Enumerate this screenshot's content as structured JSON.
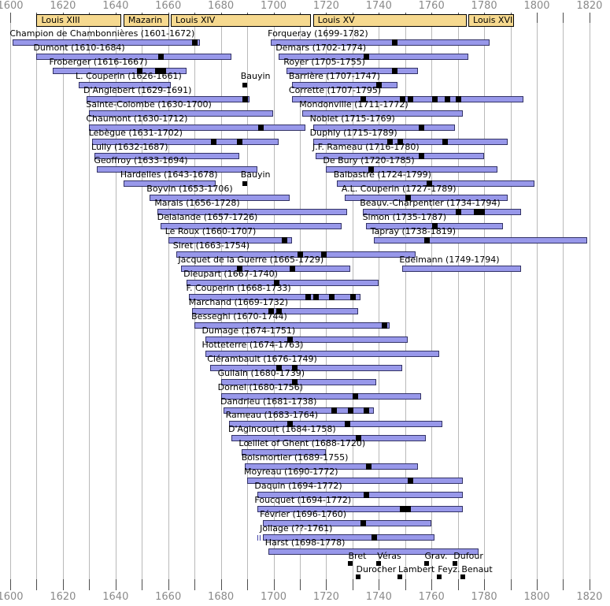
{
  "chart_data": {
    "type": "bar",
    "variant": "gantt-lifespan-timeline",
    "title": "French harpsichord composers timeline",
    "axis": {
      "min": 1600,
      "max": 1820,
      "tick_step": 10,
      "label_step": 20,
      "tick_labels": [
        "1600",
        "1620",
        "1640",
        "1660",
        "1680",
        "1700",
        "1720",
        "1740",
        "1760",
        "1780",
        "1800",
        "1820"
      ],
      "shown_top": true,
      "shown_bottom": true,
      "grid": true
    },
    "reigns": [
      {
        "label": "Louis XIII",
        "start": 1610,
        "end": 1642
      },
      {
        "label": "Mazarin",
        "start": 1643,
        "end": 1660
      },
      {
        "label": "Louis XIV",
        "start": 1661,
        "end": 1714
      },
      {
        "label": "Louis XV",
        "start": 1715,
        "end": 1773
      },
      {
        "label": "Louis XVI",
        "start": 1774,
        "end": 1791
      }
    ],
    "composers": [
      {
        "row": 1,
        "col": "left",
        "label": "Champion de Chambonnières (1601-1672)",
        "start": 1601,
        "end": 1672,
        "markers": [
          1670
        ]
      },
      {
        "row": 2,
        "col": "left",
        "label": "Dumont (1610-1684)",
        "start": 1610,
        "end": 1684,
        "markers": [
          1657
        ]
      },
      {
        "row": 3,
        "col": "left",
        "label": "Froberger (1616-1667)",
        "start": 1616,
        "end": 1667,
        "markers": [
          1649,
          1656,
          1658
        ]
      },
      {
        "row": 4,
        "col": "left",
        "label": "L. Couperin (1626-1661)",
        "start": 1626,
        "end": 1661,
        "markers": []
      },
      {
        "row": 5,
        "col": "left",
        "label": "D'Anglebert (1629-1691)",
        "start": 1629,
        "end": 1691,
        "markers": [
          1689
        ]
      },
      {
        "row": 6,
        "col": "left",
        "label": "Sainte-Colombe (1630-1700)",
        "start": 1630,
        "end": 1700,
        "markers": []
      },
      {
        "row": 7,
        "col": "left",
        "label": "Chaumont (1630-1712)",
        "start": 1630,
        "end": 1712,
        "markers": [
          1695
        ]
      },
      {
        "row": 8,
        "col": "left",
        "label": "Lebègue (1631-1702)",
        "start": 1631,
        "end": 1702,
        "markers": [
          1677,
          1687
        ]
      },
      {
        "row": 9,
        "col": "left",
        "label": "Lully (1632-1687)",
        "start": 1632,
        "end": 1687,
        "markers": []
      },
      {
        "row": 10,
        "col": "left",
        "label": "Geoffroy (1633-1694)",
        "start": 1633,
        "end": 1694,
        "markers": []
      },
      {
        "row": 11,
        "col": "left",
        "label": "Hardelles (1643-1678)",
        "start": 1643,
        "end": 1678,
        "markers": []
      },
      {
        "row": 12,
        "col": "left",
        "label": "Boyvin (1653-1706)",
        "start": 1653,
        "end": 1706,
        "markers": []
      },
      {
        "row": 13,
        "col": "left",
        "label": "Marais (1656-1728)",
        "start": 1656,
        "end": 1728,
        "markers": []
      },
      {
        "row": 14,
        "col": "left",
        "label": "Delalande (1657-1726)",
        "start": 1657,
        "end": 1726,
        "markers": []
      },
      {
        "row": 15,
        "col": "left",
        "label": "Le Roux (1660-1707)",
        "start": 1660,
        "end": 1707,
        "markers": [
          1704
        ]
      },
      {
        "row": 16,
        "col": "left",
        "label": "Siret (1663-1754)",
        "start": 1663,
        "end": 1754,
        "markers": [
          1710,
          1719
        ]
      },
      {
        "row": 17,
        "col": "left",
        "label": "Jacquet de la Guerre (1665-1729)",
        "start": 1665,
        "end": 1729,
        "markers": [
          1687,
          1707
        ]
      },
      {
        "row": 18,
        "col": "left",
        "label": "Dieupart (1667-1740)",
        "start": 1667,
        "end": 1740,
        "markers": [
          1701
        ]
      },
      {
        "row": 19,
        "col": "left",
        "label": "F. Couperin (1668-1733)",
        "start": 1668,
        "end": 1733,
        "markers": [
          1713,
          1716,
          1722,
          1730
        ]
      },
      {
        "row": 20,
        "col": "left",
        "label": "Marchand (1669-1732)",
        "start": 1669,
        "end": 1732,
        "markers": [
          1699,
          1702
        ]
      },
      {
        "row": 21,
        "col": "left",
        "label": "Besseghi (1670-1744)",
        "start": 1670,
        "end": 1744,
        "markers": [
          1742
        ]
      },
      {
        "row": 22,
        "col": "left",
        "label": "Dumage (1674-1751)",
        "start": 1674,
        "end": 1751,
        "markers": [
          1706
        ]
      },
      {
        "row": 23,
        "col": "left",
        "label": "Hotteterre (1674-1763)",
        "start": 1674,
        "end": 1763,
        "markers": []
      },
      {
        "row": 24,
        "col": "left",
        "label": "Clérambault (1676-1749)",
        "start": 1676,
        "end": 1749,
        "markers": [
          1702,
          1708
        ]
      },
      {
        "row": 25,
        "col": "left",
        "label": "Guilain (1680-1739)",
        "start": 1680,
        "end": 1739,
        "markers": [
          1708
        ]
      },
      {
        "row": 26,
        "col": "left",
        "label": "Dornel (1680-1756)",
        "start": 1680,
        "end": 1756,
        "markers": [
          1731
        ]
      },
      {
        "row": 27,
        "col": "left",
        "label": "Dandrieu (1681-1738)",
        "start": 1681,
        "end": 1738,
        "markers": [
          1723,
          1729,
          1735
        ]
      },
      {
        "row": 28,
        "col": "left",
        "label": "Rameau (1683-1764)",
        "start": 1683,
        "end": 1764,
        "markers": [
          1706,
          1728
        ]
      },
      {
        "row": 29,
        "col": "left",
        "label": "D'Agincourt (1684-1758)",
        "start": 1684,
        "end": 1758,
        "markers": [
          1732
        ]
      },
      {
        "row": 30,
        "col": "left",
        "label": "Lœillet of Ghent (1688-1720)",
        "start": 1688,
        "end": 1720,
        "markers": []
      },
      {
        "row": 31,
        "col": "left",
        "label": "Boismortier (1689-1755)",
        "start": 1689,
        "end": 1755,
        "markers": [
          1736
        ]
      },
      {
        "row": 32,
        "col": "left",
        "label": "Moyreau (1690-1772)",
        "start": 1690,
        "end": 1772,
        "markers": [
          1752
        ]
      },
      {
        "row": 33,
        "col": "left",
        "label": "Daquin (1694-1772)",
        "start": 1694,
        "end": 1772,
        "markers": [
          1735
        ]
      },
      {
        "row": 34,
        "col": "left",
        "label": "Foucquet (1694-1772)",
        "start": 1694,
        "end": 1772,
        "markers": [
          1749,
          1751
        ]
      },
      {
        "row": 35,
        "col": "left",
        "label": "Février (1696-1760)",
        "start": 1696,
        "end": 1760,
        "markers": [
          1734
        ]
      },
      {
        "row": 36,
        "col": "left",
        "label": "Jollage (??-1761)",
        "start": 1696,
        "end": 1761,
        "markers": [
          1738
        ],
        "start_unknown": true
      },
      {
        "row": 37,
        "col": "left",
        "label": "Harst (1698-1778)",
        "start": 1698,
        "end": 1778,
        "markers": []
      },
      {
        "row": 1,
        "col": "right",
        "label": "Forqueray (1699-1782)",
        "start": 1699,
        "end": 1782,
        "markers": [
          1746
        ]
      },
      {
        "row": 2,
        "col": "right",
        "label": "Demars (1702-1774)",
        "start": 1702,
        "end": 1774,
        "markers": [
          1735
        ]
      },
      {
        "row": 3,
        "col": "right",
        "label": "Royer (1705-1755)",
        "start": 1705,
        "end": 1755,
        "markers": [
          1746
        ]
      },
      {
        "row": 4,
        "col": "right",
        "label": "Barrière (1707-1747)",
        "start": 1707,
        "end": 1747,
        "markers": [
          1740
        ]
      },
      {
        "row": 5,
        "col": "right",
        "label": "Corrette (1707-1795)",
        "start": 1707,
        "end": 1795,
        "markers": [
          1734,
          1749,
          1752,
          1761,
          1766,
          1770
        ]
      },
      {
        "row": 6,
        "col": "right",
        "label": "Mondonville (1711-1772)",
        "start": 1711,
        "end": 1772,
        "markers": []
      },
      {
        "row": 7,
        "col": "right",
        "label": "Noblet (1715-1769)",
        "start": 1715,
        "end": 1769,
        "markers": [
          1756
        ]
      },
      {
        "row": 8,
        "col": "right",
        "label": "Duphly (1715-1789)",
        "start": 1715,
        "end": 1789,
        "markers": [
          1744,
          1748,
          1765
        ]
      },
      {
        "row": 9,
        "col": "right",
        "label": "J.F. Rameau (1716-1780)",
        "start": 1716,
        "end": 1780,
        "markers": [
          1756
        ]
      },
      {
        "row": 10,
        "col": "right",
        "label": "De Bury (1720-1785)",
        "start": 1720,
        "end": 1785,
        "markers": [
          1737
        ]
      },
      {
        "row": 11,
        "col": "right",
        "label": "Balbastre (1724-1799)",
        "start": 1724,
        "end": 1799,
        "markers": [
          1759
        ]
      },
      {
        "row": 12,
        "col": "right",
        "label": "A.L. Couperin (1727-1789)",
        "start": 1727,
        "end": 1789,
        "markers": [
          1751
        ]
      },
      {
        "row": 13,
        "col": "right",
        "label": "Beauv.-Charpentier (1734-1794)",
        "start": 1734,
        "end": 1794,
        "markers": [
          1770,
          1777,
          1779
        ]
      },
      {
        "row": 14,
        "col": "right",
        "label": "Simon (1735-1787)",
        "start": 1735,
        "end": 1787,
        "markers": [
          1761
        ]
      },
      {
        "row": 15,
        "col": "right",
        "label": "Tapray (1738-1819)",
        "start": 1738,
        "end": 1819,
        "markers": [
          1758
        ]
      },
      {
        "row": 17,
        "col": "right",
        "label": "Edelmann (1749-1794)",
        "start": 1749,
        "end": 1794,
        "markers": []
      }
    ],
    "inline_events": [
      {
        "label": "Bauyin",
        "year": 1689,
        "row": 4
      },
      {
        "label": "Bauyin",
        "year": 1689,
        "row": 11
      }
    ],
    "bottom_events": [
      {
        "label": "Bret",
        "year": 1729,
        "level": 1
      },
      {
        "label": "Véras",
        "year": 1740,
        "level": 1
      },
      {
        "label": "Grav.",
        "year": 1758,
        "level": 1
      },
      {
        "label": "Dufour",
        "year": 1769,
        "level": 1
      },
      {
        "label": "Durocher",
        "year": 1732,
        "level": 2
      },
      {
        "label": "Lambert",
        "year": 1748,
        "level": 2
      },
      {
        "label": "Feyz.",
        "year": 1763,
        "level": 2
      },
      {
        "label": "Benaut",
        "year": 1772,
        "level": 2
      }
    ]
  },
  "colors": {
    "background": "#ffffff",
    "grid": "#b9b9b9",
    "tick": "#4d4d4d",
    "axis_text": "#8a8a8a",
    "bar_fill": "#9898ea",
    "bar_border": "#333366",
    "publication_marker": "#000000",
    "reign_fill": "#f6d98f",
    "reign_border": "#000000",
    "label_text": "#000000"
  }
}
